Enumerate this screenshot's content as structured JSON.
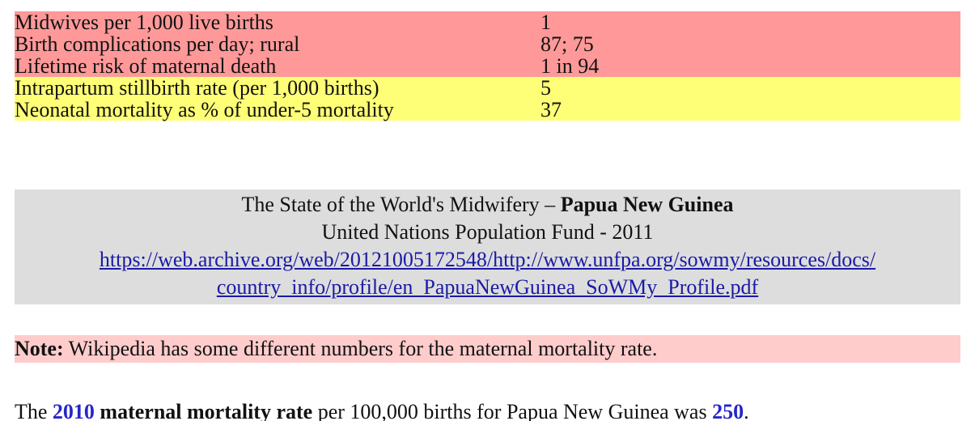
{
  "table": {
    "rows": [
      [
        "Midwives per 1,000 live births",
        "1"
      ],
      [
        "Birth complications per day; rural",
        "87; 75"
      ],
      [
        "Lifetime risk of maternal death",
        "1 in 94"
      ],
      [
        "Intrapartum stillbirth rate (per 1,000 births)",
        "5"
      ],
      [
        "Neonatal mortality as % of under-5 mortality",
        "37"
      ]
    ]
  },
  "source": {
    "title": "The State of the World's Midwifery –",
    "country": "Papua New Guinea",
    "publisher": "United Nations Population Fund - 2011",
    "url": [
      "https://web.archive.org/web/20121005172548/http://www.unfpa.org/sowmy/resources/docs/",
      "country_info/profile/en_PapuaNewGuinea_SoWMy_Profile.pdf"
    ]
  },
  "note": {
    "label": "Note:",
    "text": "Wikipedia has some different numbers for the maternal mortality rate."
  },
  "sentence": {
    "start": "The",
    "year": "2010",
    "term": "maternal mortality rate",
    "middle": "per 100,000 births for Papua New Guinea was",
    "value": "250",
    "end": "."
  }
}
